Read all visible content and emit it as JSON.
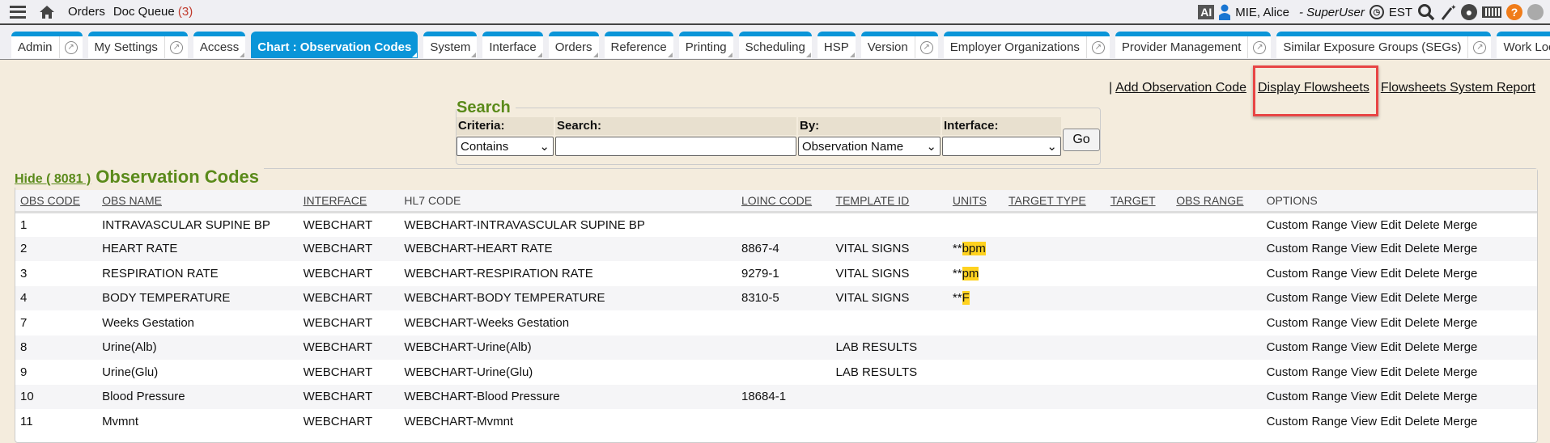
{
  "topbar": {
    "menu_icon": "hamburger-icon",
    "home_icon": "home-icon",
    "orders": "Orders",
    "doc_queue": "Doc Queue",
    "doc_queue_count": "(3)",
    "ai": "AI",
    "user": "MIE, Alice",
    "role": "- SuperUser",
    "timezone": "EST",
    "help": "?"
  },
  "tabs": [
    {
      "label": "Admin",
      "ext": true
    },
    {
      "label": "My Settings",
      "ext": true
    },
    {
      "label": "Access",
      "menu": true
    },
    {
      "label": "Chart : Observation Codes",
      "menu": true,
      "active": true
    },
    {
      "label": "System",
      "menu": true
    },
    {
      "label": "Interface",
      "menu": true
    },
    {
      "label": "Orders",
      "menu": true
    },
    {
      "label": "Reference",
      "menu": true
    },
    {
      "label": "Printing",
      "menu": true
    },
    {
      "label": "Scheduling",
      "menu": true
    },
    {
      "label": "HSP",
      "menu": true
    },
    {
      "label": "Version",
      "ext": true
    },
    {
      "label": "Employer Organizations",
      "ext": true
    },
    {
      "label": "Provider Management",
      "ext": true
    },
    {
      "label": "Similar Exposure Groups (SEGs)",
      "ext": true
    },
    {
      "label": "Work Locations",
      "ext": true
    }
  ],
  "links": {
    "sep": "|",
    "add": "Add Observation Code",
    "display": "Display Flowsheets",
    "report": "Flowsheets System Report"
  },
  "search": {
    "legend": "Search",
    "criteria_label": "Criteria:",
    "search_label": "Search:",
    "by_label": "By:",
    "interface_label": "Interface:",
    "criteria_value": "Contains",
    "search_value": "",
    "by_value": "Observation Name",
    "interface_value": "",
    "go": "Go"
  },
  "obs": {
    "hide": "Hide ( 8081 )",
    "title": "Observation Codes",
    "columns": [
      "OBS CODE",
      "OBS NAME",
      "INTERFACE",
      "HL7 CODE",
      "LOINC CODE",
      "TEMPLATE ID",
      "UNITS",
      "TARGET TYPE",
      "TARGET",
      "OBS RANGE",
      "OPTIONS"
    ],
    "rows": [
      [
        "1",
        "INTRAVASCULAR SUPINE BP",
        "WEBCHART",
        "WEBCHART-INTRAVASCULAR SUPINE BP",
        "",
        "",
        "",
        "",
        "",
        "",
        ""
      ],
      [
        "2",
        "HEART RATE",
        "WEBCHART",
        "WEBCHART-HEART RATE",
        "8867-4",
        "VITAL SIGNS",
        "bpm",
        "",
        "",
        "",
        ""
      ],
      [
        "3",
        "RESPIRATION RATE",
        "WEBCHART",
        "WEBCHART-RESPIRATION RATE",
        "9279-1",
        "VITAL SIGNS",
        "pm",
        "",
        "",
        "",
        ""
      ],
      [
        "4",
        "BODY TEMPERATURE",
        "WEBCHART",
        "WEBCHART-BODY TEMPERATURE",
        "8310-5",
        "VITAL SIGNS",
        "F",
        "",
        "",
        "",
        ""
      ],
      [
        "7",
        "Weeks Gestation",
        "WEBCHART",
        "WEBCHART-Weeks Gestation",
        "",
        "",
        "",
        "",
        "",
        "",
        ""
      ],
      [
        "8",
        "Urine(Alb)",
        "WEBCHART",
        "WEBCHART-Urine(Alb)",
        "",
        "LAB RESULTS",
        "",
        "",
        "",
        "",
        ""
      ],
      [
        "9",
        "Urine(Glu)",
        "WEBCHART",
        "WEBCHART-Urine(Glu)",
        "",
        "LAB RESULTS",
        "",
        "",
        "",
        "",
        ""
      ],
      [
        "10",
        "Blood Pressure",
        "WEBCHART",
        "WEBCHART-Blood Pressure",
        "18684-1",
        "",
        "",
        "",
        "",
        "",
        ""
      ],
      [
        "11",
        "Mvmnt",
        "WEBCHART",
        "WEBCHART-Mvmnt",
        "",
        "",
        "",
        "",
        "",
        "",
        ""
      ]
    ],
    "unit_prefix": "**",
    "options": [
      "Custom Range",
      "View",
      "Edit",
      "Delete",
      "Merge"
    ]
  },
  "colors": {
    "accent": "#0a95d8",
    "green": "#5a8a1a",
    "highlight": "#ffd21f",
    "callout": "#e84545"
  }
}
